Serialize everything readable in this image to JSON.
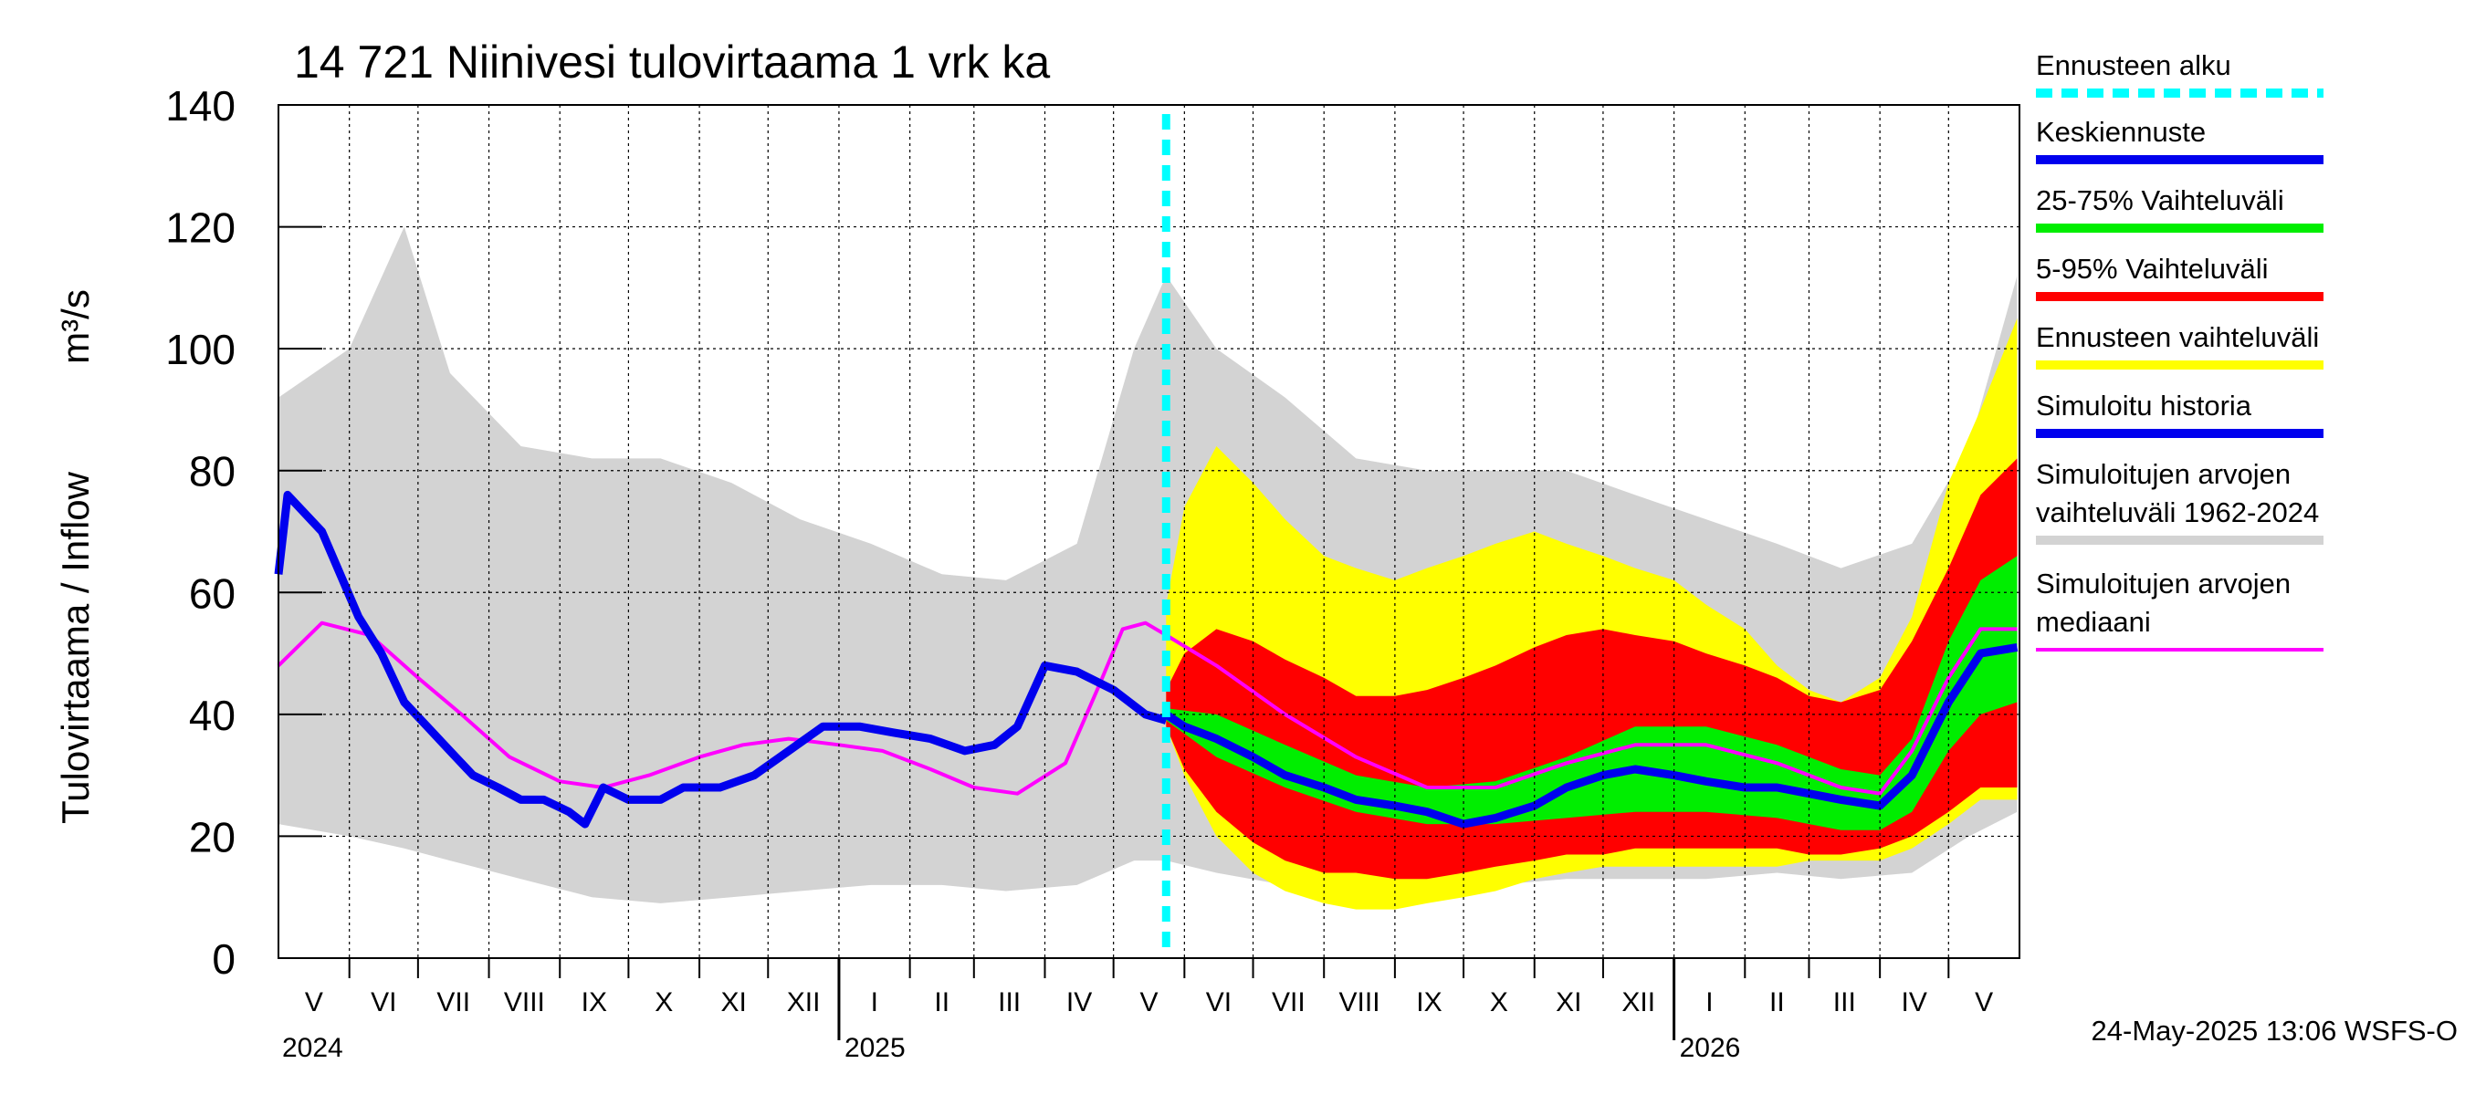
{
  "chart_data": {
    "type": "area",
    "title": "14 721 Niinivesi tulovirtaama 1 vrk ka",
    "ylabel": "Tulovirtaama / Inflow",
    "yunit": "m³/s",
    "ylim": [
      0,
      140
    ],
    "yticks": [
      "0",
      "20",
      "40",
      "60",
      "80",
      "100",
      "120",
      "140"
    ],
    "xlim": [
      "2024-05-01",
      "2026-05-31"
    ],
    "forecast_start": "2025-05-24",
    "grid": true,
    "legend_position": "right",
    "months": [
      {
        "label": "V",
        "start": "2024-05-01"
      },
      {
        "label": "VI",
        "start": "2024-06-01"
      },
      {
        "label": "VII",
        "start": "2024-07-01"
      },
      {
        "label": "VIII",
        "start": "2024-08-01"
      },
      {
        "label": "IX",
        "start": "2024-09-01"
      },
      {
        "label": "X",
        "start": "2024-10-01"
      },
      {
        "label": "XI",
        "start": "2024-11-01"
      },
      {
        "label": "XII",
        "start": "2024-12-01"
      },
      {
        "label": "I",
        "start": "2025-01-01"
      },
      {
        "label": "II",
        "start": "2025-02-01"
      },
      {
        "label": "III",
        "start": "2025-03-01"
      },
      {
        "label": "IV",
        "start": "2025-04-01"
      },
      {
        "label": "V",
        "start": "2025-05-01"
      },
      {
        "label": "VI",
        "start": "2025-06-01"
      },
      {
        "label": "VII",
        "start": "2025-07-01"
      },
      {
        "label": "VIII",
        "start": "2025-08-01"
      },
      {
        "label": "IX",
        "start": "2025-09-01"
      },
      {
        "label": "X",
        "start": "2025-10-01"
      },
      {
        "label": "XI",
        "start": "2025-11-01"
      },
      {
        "label": "XII",
        "start": "2025-12-01"
      },
      {
        "label": "I",
        "start": "2026-01-01"
      },
      {
        "label": "II",
        "start": "2026-02-01"
      },
      {
        "label": "III",
        "start": "2026-03-01"
      },
      {
        "label": "IV",
        "start": "2026-04-01"
      },
      {
        "label": "V",
        "start": "2026-05-01"
      }
    ],
    "years": [
      {
        "label": "2024",
        "date": "2024-05-01"
      },
      {
        "label": "2025",
        "date": "2025-01-01"
      },
      {
        "label": "2026",
        "date": "2026-01-01"
      }
    ],
    "series": [
      {
        "name": "Simuloitujen arvojen vaihteluväli 1962-2024",
        "color": "#d3d3d3",
        "kind": "band",
        "x": [
          "2024-05-01",
          "2024-06-01",
          "2024-06-25",
          "2024-07-15",
          "2024-08-15",
          "2024-09-15",
          "2024-10-15",
          "2024-11-15",
          "2024-12-15",
          "2025-01-15",
          "2025-02-15",
          "2025-03-15",
          "2025-04-15",
          "2025-05-10",
          "2025-05-24",
          "2025-06-15",
          "2025-07-15",
          "2025-08-15",
          "2025-09-15",
          "2025-10-15",
          "2025-11-15",
          "2025-12-15",
          "2026-01-15",
          "2026-02-15",
          "2026-03-15",
          "2026-04-15",
          "2026-05-10",
          "2026-05-31"
        ],
        "lower": [
          22,
          20,
          18,
          16,
          13,
          10,
          9,
          10,
          11,
          12,
          12,
          11,
          12,
          16,
          16,
          14,
          12,
          10,
          11,
          12,
          13,
          13,
          13,
          14,
          13,
          14,
          20,
          24
        ],
        "upper": [
          92,
          100,
          120,
          96,
          84,
          82,
          82,
          78,
          72,
          68,
          63,
          62,
          68,
          100,
          112,
          100,
          92,
          82,
          80,
          80,
          80,
          76,
          72,
          68,
          64,
          68,
          84,
          112
        ]
      },
      {
        "name": "Ennusteen vaihteluväli",
        "color": "#ffff00",
        "kind": "band",
        "x": [
          "2025-05-24",
          "2025-06-01",
          "2025-06-15",
          "2025-07-01",
          "2025-07-15",
          "2025-08-01",
          "2025-08-15",
          "2025-09-01",
          "2025-09-15",
          "2025-10-01",
          "2025-10-15",
          "2025-11-01",
          "2025-11-15",
          "2025-12-01",
          "2025-12-15",
          "2026-01-01",
          "2026-01-15",
          "2026-02-01",
          "2026-02-15",
          "2026-03-01",
          "2026-03-15",
          "2026-04-01",
          "2026-04-15",
          "2026-05-01",
          "2026-05-15",
          "2026-05-31"
        ],
        "lower": [
          38,
          30,
          20,
          14,
          11,
          9,
          8,
          8,
          9,
          10,
          11,
          13,
          14,
          15,
          15,
          15,
          15,
          15,
          15,
          16,
          16,
          16,
          18,
          22,
          26,
          26
        ],
        "upper": [
          58,
          74,
          84,
          78,
          72,
          66,
          64,
          62,
          64,
          66,
          68,
          70,
          68,
          66,
          64,
          62,
          58,
          54,
          48,
          44,
          42,
          46,
          56,
          78,
          90,
          105
        ]
      },
      {
        "name": "5-95% Vaihteluväli",
        "color": "#ff0000",
        "kind": "band",
        "x": [
          "2025-05-24",
          "2025-06-01",
          "2025-06-15",
          "2025-07-01",
          "2025-07-15",
          "2025-08-01",
          "2025-08-15",
          "2025-09-01",
          "2025-09-15",
          "2025-10-01",
          "2025-10-15",
          "2025-11-01",
          "2025-11-15",
          "2025-12-01",
          "2025-12-15",
          "2026-01-01",
          "2026-01-15",
          "2026-02-01",
          "2026-02-15",
          "2026-03-01",
          "2026-03-15",
          "2026-04-01",
          "2026-04-15",
          "2026-05-01",
          "2026-05-15",
          "2026-05-31"
        ],
        "lower": [
          38,
          31,
          24,
          19,
          16,
          14,
          14,
          13,
          13,
          14,
          15,
          16,
          17,
          17,
          18,
          18,
          18,
          18,
          18,
          17,
          17,
          18,
          20,
          24,
          28,
          28
        ],
        "upper": [
          44,
          50,
          54,
          52,
          49,
          46,
          43,
          43,
          44,
          46,
          48,
          51,
          53,
          54,
          53,
          52,
          50,
          48,
          46,
          43,
          42,
          44,
          52,
          64,
          76,
          82
        ]
      },
      {
        "name": "25-75% Vaihteluväli",
        "color": "#00ee00",
        "kind": "band",
        "x": [
          "2025-05-24",
          "2025-06-15",
          "2025-07-15",
          "2025-08-15",
          "2025-09-15",
          "2025-10-15",
          "2025-11-15",
          "2025-12-15",
          "2026-01-15",
          "2026-02-15",
          "2026-03-15",
          "2026-04-01",
          "2026-04-15",
          "2026-05-01",
          "2026-05-15",
          "2026-05-31"
        ],
        "lower": [
          39,
          33,
          28,
          24,
          22,
          22,
          23,
          24,
          24,
          23,
          21,
          21,
          24,
          34,
          40,
          42
        ],
        "upper": [
          41,
          40,
          35,
          30,
          28,
          29,
          33,
          38,
          38,
          35,
          31,
          30,
          36,
          52,
          62,
          66
        ]
      },
      {
        "name": "Simuloitujen arvojen mediaani",
        "color": "#ff00ff",
        "kind": "line",
        "x": [
          "2024-05-01",
          "2024-05-20",
          "2024-06-10",
          "2024-07-01",
          "2024-07-20",
          "2024-08-10",
          "2024-09-01",
          "2024-09-20",
          "2024-10-10",
          "2024-11-01",
          "2024-11-20",
          "2024-12-10",
          "2025-01-01",
          "2025-01-20",
          "2025-02-10",
          "2025-03-01",
          "2025-03-20",
          "2025-04-10",
          "2025-04-25",
          "2025-05-05",
          "2025-05-15",
          "2025-05-24",
          "2025-06-15",
          "2025-07-15",
          "2025-08-15",
          "2025-09-15",
          "2025-10-15",
          "2025-11-15",
          "2025-12-15",
          "2026-01-15",
          "2026-02-15",
          "2026-03-15",
          "2026-04-01",
          "2026-04-15",
          "2026-05-01",
          "2026-05-15",
          "2026-05-31"
        ],
        "y": [
          48,
          55,
          53,
          46,
          40,
          33,
          29,
          28,
          30,
          33,
          35,
          36,
          35,
          34,
          31,
          28,
          27,
          32,
          45,
          54,
          55,
          53,
          48,
          40,
          33,
          28,
          28,
          32,
          35,
          35,
          32,
          28,
          27,
          34,
          46,
          54,
          54
        ]
      },
      {
        "name": "Simuloitu historia",
        "color": "#0000ee",
        "kind": "line",
        "x": [
          "2024-05-01",
          "2024-05-05",
          "2024-05-20",
          "2024-06-05",
          "2024-06-15",
          "2024-06-25",
          "2024-07-05",
          "2024-07-15",
          "2024-07-25",
          "2024-08-05",
          "2024-08-15",
          "2024-08-25",
          "2024-09-05",
          "2024-09-12",
          "2024-09-20",
          "2024-10-01",
          "2024-10-15",
          "2024-10-25",
          "2024-11-10",
          "2024-11-25",
          "2024-12-10",
          "2024-12-25",
          "2025-01-10",
          "2025-01-25",
          "2025-02-10",
          "2025-02-25",
          "2025-03-10",
          "2025-03-20",
          "2025-04-01",
          "2025-04-15",
          "2025-05-01",
          "2025-05-15",
          "2025-05-24"
        ],
        "y": [
          63,
          76,
          70,
          56,
          50,
          42,
          38,
          34,
          30,
          28,
          26,
          26,
          24,
          22,
          28,
          26,
          26,
          28,
          28,
          30,
          34,
          38,
          38,
          37,
          36,
          34,
          35,
          38,
          48,
          47,
          44,
          40,
          39
        ]
      },
      {
        "name": "Keskiennuste",
        "color": "#0000ee",
        "kind": "line",
        "x": [
          "2025-05-24",
          "2025-06-01",
          "2025-06-15",
          "2025-07-01",
          "2025-07-15",
          "2025-08-01",
          "2025-08-15",
          "2025-09-01",
          "2025-09-15",
          "2025-10-01",
          "2025-10-15",
          "2025-11-01",
          "2025-11-15",
          "2025-12-01",
          "2025-12-15",
          "2026-01-01",
          "2026-01-15",
          "2026-02-01",
          "2026-02-15",
          "2026-03-01",
          "2026-03-15",
          "2026-04-01",
          "2026-04-15",
          "2026-05-01",
          "2026-05-15",
          "2026-05-31"
        ],
        "y": [
          40,
          38,
          36,
          33,
          30,
          28,
          26,
          25,
          24,
          22,
          23,
          25,
          28,
          30,
          31,
          30,
          29,
          28,
          28,
          27,
          26,
          25,
          30,
          42,
          50,
          51
        ]
      }
    ]
  },
  "legend": [
    {
      "label": "Ennusteen alku",
      "color": "#00ffff",
      "style": "dashed"
    },
    {
      "label": "Keskiennuste",
      "color": "#0000ee",
      "style": "solid"
    },
    {
      "label": "25-75% Vaihteluväli",
      "color": "#00ee00",
      "style": "solid"
    },
    {
      "label": "5-95% Vaihteluväli",
      "color": "#ff0000",
      "style": "solid"
    },
    {
      "label": "Ennusteen vaihteluväli",
      "color": "#ffff00",
      "style": "solid"
    },
    {
      "label": "Simuloitu historia",
      "color": "#0000ee",
      "style": "solid"
    },
    {
      "label": "Simuloitujen arvojen vaihteluväli 1962-2024",
      "lines": [
        "Simuloitujen arvojen",
        "vaihteluväli 1962-2024"
      ],
      "color": "#d3d3d3",
      "style": "solid"
    },
    {
      "label": "Simuloitujen arvojen mediaani",
      "lines": [
        "Simuloitujen arvojen",
        "mediaani"
      ],
      "color": "#ff00ff",
      "style": "solid"
    }
  ],
  "footer": "24-May-2025 13:06 WSFS-O"
}
